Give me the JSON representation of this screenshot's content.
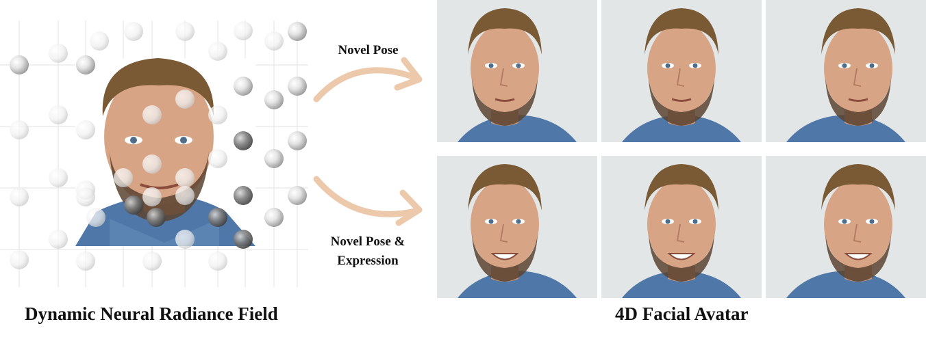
{
  "left_panel": {
    "caption": "Dynamic Neural Radiance Field"
  },
  "arrows": {
    "top_label": "Novel Pose",
    "bottom_label_line1": "Novel Pose &",
    "bottom_label_line2": "Expression",
    "color": "#edc9ac"
  },
  "right_panel": {
    "caption": "4D Facial Avatar"
  },
  "colors": {
    "background": "#ffffff",
    "photo_bg": "#e3e6e7",
    "skin": "#d8a486",
    "hair": "#7a5a35",
    "beard": "#5a4330",
    "shirt": "#4f78a8"
  }
}
